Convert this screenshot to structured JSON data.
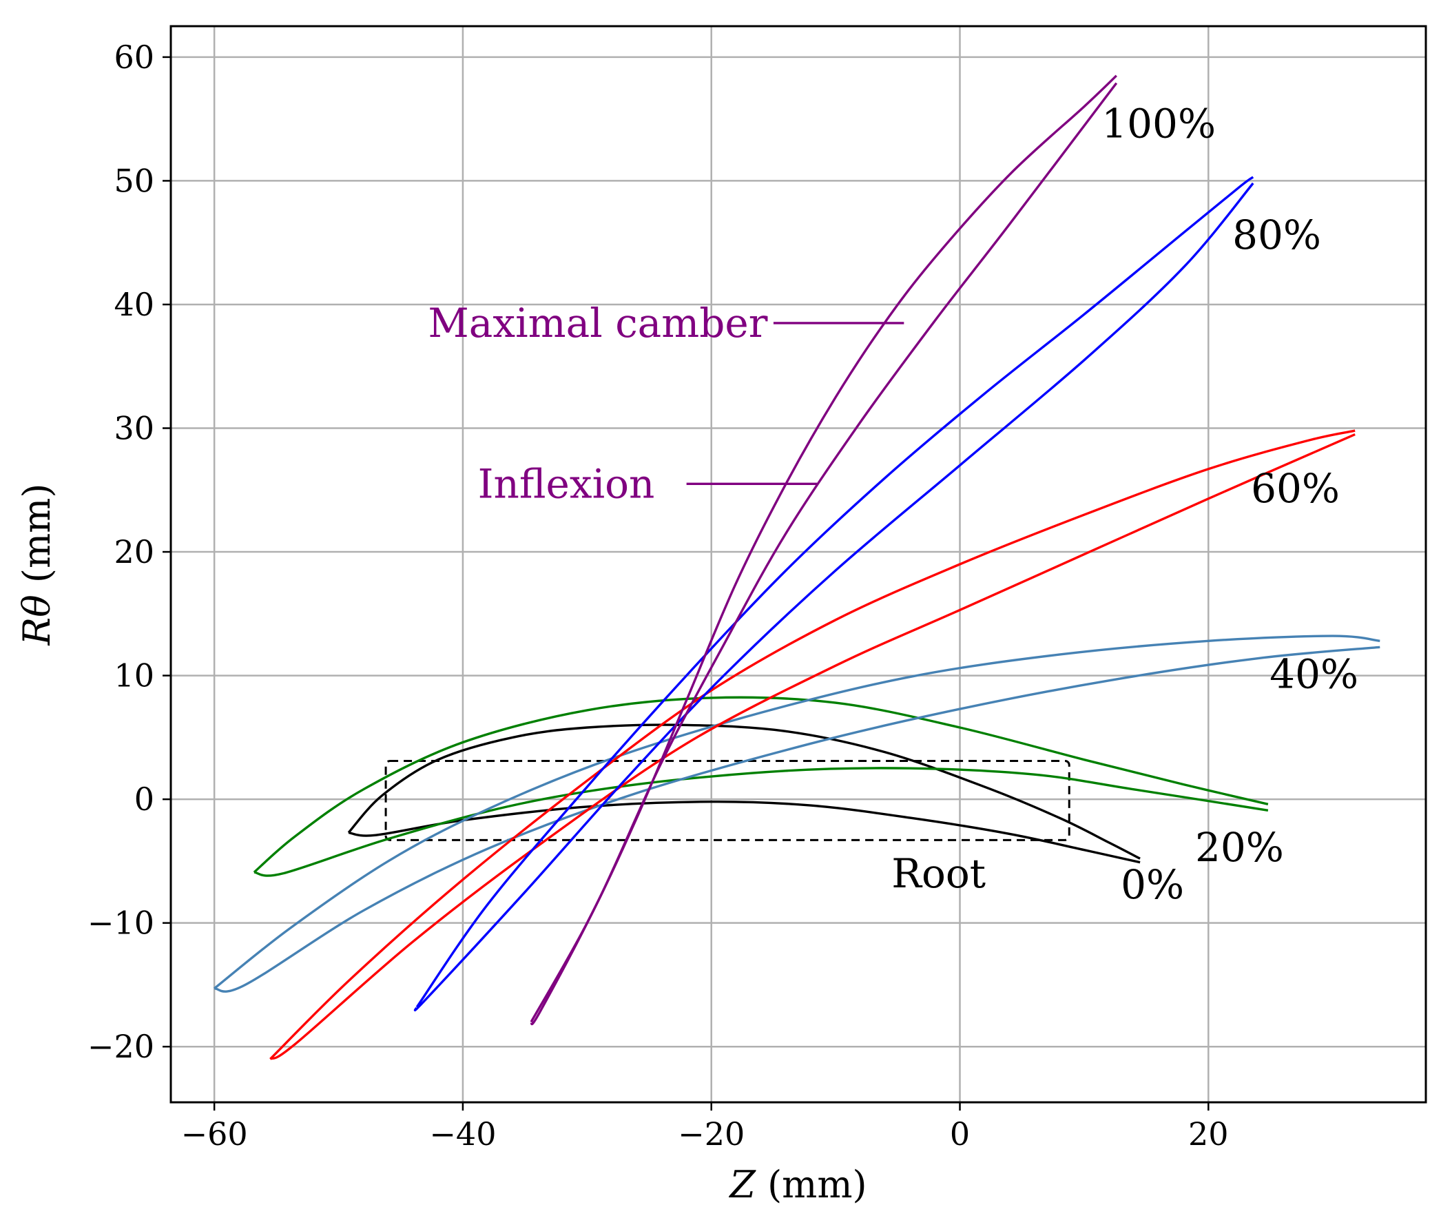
{
  "chart_data": {
    "type": "line",
    "title": "",
    "xlabel": "Z (mm)",
    "ylabel": "Rθ (mm)",
    "xlabel_var": "Z",
    "xlabel_unit": " (mm)",
    "ylabel_var": "Rθ",
    "ylabel_unit": " (mm)",
    "xlim": [
      -63.5,
      37.5
    ],
    "ylim": [
      -24.5,
      62.5
    ],
    "xticks": [
      -60,
      -40,
      -20,
      0,
      20
    ],
    "yticks": [
      -20,
      -10,
      0,
      10,
      20,
      30,
      40,
      50,
      60
    ],
    "xtick_labels": [
      "−60",
      "−40",
      "−20",
      "0",
      "20"
    ],
    "ytick_labels": [
      "−20",
      "−10",
      "0",
      "10",
      "20",
      "30",
      "40",
      "50",
      "60"
    ],
    "grid": true,
    "series": [
      {
        "name": "0%",
        "color": "#000000",
        "label_at": [
          15.5,
          -8.0
        ],
        "suction": [
          [
            -49.2,
            -2.7
          ],
          [
            -46.5,
            0.3
          ],
          [
            -42,
            3.2
          ],
          [
            -36,
            5.0
          ],
          [
            -30,
            5.8
          ],
          [
            -22,
            6.0
          ],
          [
            -14,
            5.5
          ],
          [
            -6,
            3.8
          ],
          [
            2,
            1.0
          ],
          [
            8,
            -1.5
          ],
          [
            12,
            -3.5
          ],
          [
            14.5,
            -4.8
          ]
        ],
        "pressure": [
          [
            -49.2,
            -2.7
          ],
          [
            -47,
            -2.9
          ],
          [
            -40,
            -1.7
          ],
          [
            -30,
            -0.6
          ],
          [
            -20,
            -0.2
          ],
          [
            -12,
            -0.5
          ],
          [
            -4,
            -1.5
          ],
          [
            4,
            -2.8
          ],
          [
            10,
            -4.1
          ],
          [
            14.5,
            -5.1
          ]
        ]
      },
      {
        "name": "20%",
        "color": "#008000",
        "label_at": [
          22.5,
          -5.0
        ],
        "suction": [
          [
            -56.8,
            -5.9
          ],
          [
            -53.5,
            -3.0
          ],
          [
            -48,
            0.8
          ],
          [
            -40,
            4.6
          ],
          [
            -30,
            7.2
          ],
          [
            -20,
            8.2
          ],
          [
            -10,
            7.8
          ],
          [
            0,
            5.8
          ],
          [
            10,
            3.2
          ],
          [
            18,
            1.2
          ],
          [
            24.8,
            -0.4
          ]
        ],
        "pressure": [
          [
            -56.8,
            -5.9
          ],
          [
            -54.5,
            -6.0
          ],
          [
            -46,
            -3.2
          ],
          [
            -36,
            -0.5
          ],
          [
            -26,
            1.2
          ],
          [
            -14,
            2.3
          ],
          [
            -4,
            2.5
          ],
          [
            6,
            2.0
          ],
          [
            14,
            0.8
          ],
          [
            24.8,
            -0.9
          ]
        ]
      },
      {
        "name": "40%",
        "color": "#4682b4",
        "label_at": [
          28.5,
          9.0
        ],
        "suction": [
          [
            -60,
            -15.3
          ],
          [
            -54,
            -10.5
          ],
          [
            -46,
            -5.0
          ],
          [
            -38,
            -0.8
          ],
          [
            -28,
            3.3
          ],
          [
            -16,
            7.0
          ],
          [
            -4,
            9.9
          ],
          [
            8,
            11.7
          ],
          [
            20,
            12.8
          ],
          [
            30,
            13.2
          ],
          [
            33.8,
            12.8
          ]
        ],
        "pressure": [
          [
            -60,
            -15.3
          ],
          [
            -57.5,
            -15.0
          ],
          [
            -48,
            -9.0
          ],
          [
            -38,
            -4.0
          ],
          [
            -26,
            0.5
          ],
          [
            -12,
            4.5
          ],
          [
            0,
            7.3
          ],
          [
            12,
            9.6
          ],
          [
            24,
            11.4
          ],
          [
            33.8,
            12.3
          ]
        ]
      },
      {
        "name": "60%",
        "color": "#ff0000",
        "label_at": [
          27.0,
          24.0
        ],
        "suction": [
          [
            -55.5,
            -21.0
          ],
          [
            -49,
            -14.5
          ],
          [
            -40,
            -6.5
          ],
          [
            -30,
            1.5
          ],
          [
            -20,
            8.8
          ],
          [
            -10,
            14.5
          ],
          [
            0,
            19.0
          ],
          [
            10,
            23.0
          ],
          [
            20,
            26.7
          ],
          [
            28,
            29.0
          ],
          [
            31.8,
            29.8
          ]
        ],
        "pressure": [
          [
            -55.5,
            -21.0
          ],
          [
            -53.5,
            -19.8
          ],
          [
            -44,
            -11.5
          ],
          [
            -34,
            -3.8
          ],
          [
            -22,
            4.5
          ],
          [
            -10,
            10.8
          ],
          [
            0,
            15.3
          ],
          [
            10,
            19.8
          ],
          [
            20,
            24.3
          ],
          [
            31.8,
            29.5
          ]
        ]
      },
      {
        "name": "80%",
        "color": "#0000ff",
        "label_at": [
          25.5,
          44.5
        ],
        "suction": [
          [
            -43.7,
            -16.8
          ],
          [
            -38,
            -8.5
          ],
          [
            -30,
            1.0
          ],
          [
            -22,
            10.0
          ],
          [
            -14,
            18.5
          ],
          [
            -6,
            26.0
          ],
          [
            2,
            32.8
          ],
          [
            10,
            39.2
          ],
          [
            18,
            45.8
          ],
          [
            22.5,
            49.5
          ],
          [
            23.6,
            50.3
          ]
        ],
        "pressure": [
          [
            -43.7,
            -16.8
          ],
          [
            -43.0,
            -16.2
          ],
          [
            -35,
            -7.5
          ],
          [
            -27,
            1.5
          ],
          [
            -19,
            10.0
          ],
          [
            -10,
            18.5
          ],
          [
            0,
            27.0
          ],
          [
            10,
            35.5
          ],
          [
            18,
            43.0
          ],
          [
            23.6,
            49.8
          ]
        ]
      },
      {
        "name": "100%",
        "color": "#800080",
        "label_at": [
          16.0,
          53.5
        ],
        "suction": [
          [
            -34.5,
            -18.0
          ],
          [
            -30,
            -10.0
          ],
          [
            -26,
            -1.5
          ],
          [
            -22,
            8.0
          ],
          [
            -18,
            17.5
          ],
          [
            -14,
            25.5
          ],
          [
            -10,
            32.5
          ],
          [
            -6,
            38.6
          ],
          [
            -2,
            43.8
          ],
          [
            4,
            50.5
          ],
          [
            10,
            56.0
          ],
          [
            12.6,
            58.5
          ]
        ],
        "pressure": [
          [
            -34.5,
            -18.0
          ],
          [
            -33.8,
            -17.2
          ],
          [
            -29,
            -8.0
          ],
          [
            -24,
            3.0
          ],
          [
            -19,
            12.5
          ],
          [
            -14,
            21.5
          ],
          [
            -8,
            30.5
          ],
          [
            -2,
            38.7
          ],
          [
            4,
            46.5
          ],
          [
            12.6,
            57.9
          ]
        ]
      }
    ],
    "annotations": [
      {
        "text": "Maximal camber",
        "color": "#800080",
        "text_at": [
          -42.8,
          38.5
        ],
        "line_from": [
          -15,
          38.5
        ],
        "line_to": [
          -4.5,
          38.5
        ]
      },
      {
        "text": "Inflexion",
        "color": "#800080",
        "text_at": [
          -38.8,
          25.5
        ],
        "line_from": [
          -22,
          25.5
        ],
        "line_to": [
          -11.5,
          25.5
        ]
      },
      {
        "text": "Root",
        "color": "#000000",
        "text_at": [
          -5.5,
          -6.0
        ]
      }
    ],
    "root_box": {
      "label": "Root",
      "z_range": [
        -46.2,
        8.8
      ],
      "rtheta_range": [
        -3.3,
        3.1
      ],
      "style": "dashed"
    }
  }
}
